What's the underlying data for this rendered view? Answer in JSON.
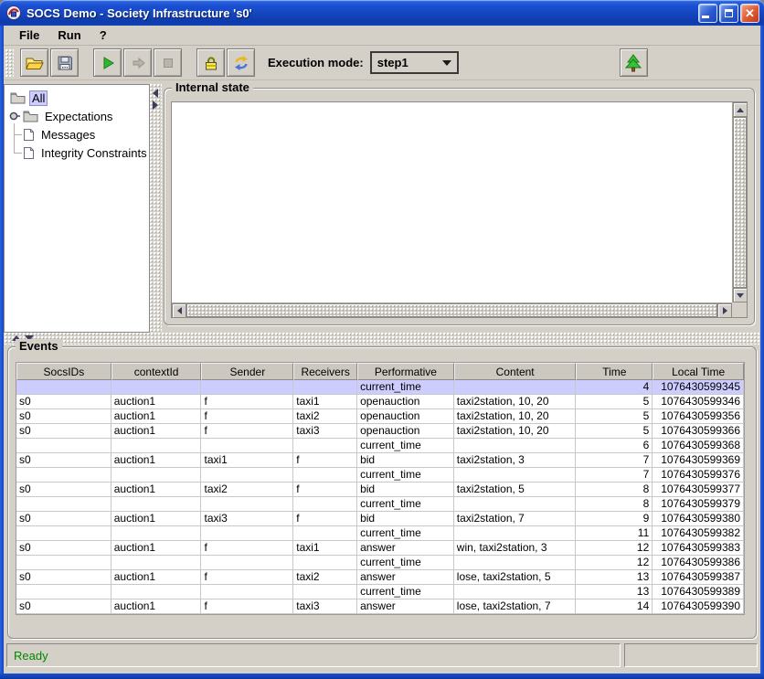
{
  "window": {
    "title": "SOCS Demo - Society Infrastructure 's0'"
  },
  "menu_bar": {
    "items": [
      "File",
      "Run",
      "?"
    ]
  },
  "toolbar": {
    "execution_mode_label": "Execution mode:",
    "execution_mode_value": "step1",
    "buttons": [
      "open",
      "save",
      "run",
      "step-forward",
      "stop",
      "lock",
      "refresh",
      "show-tree"
    ]
  },
  "tree": {
    "items": [
      {
        "label": "All",
        "icon": "folder",
        "selected": true,
        "level": 0,
        "handle": false,
        "last": false
      },
      {
        "label": "Expectations",
        "icon": "folder",
        "selected": false,
        "level": 0,
        "handle": true,
        "last": false
      },
      {
        "label": "Messages",
        "icon": "document",
        "selected": false,
        "level": 1,
        "handle": false,
        "last": false
      },
      {
        "label": "Integrity Constraints",
        "icon": "document",
        "selected": false,
        "level": 1,
        "handle": false,
        "last": true
      }
    ]
  },
  "internal_state": {
    "title": "Internal state",
    "content": ""
  },
  "events": {
    "title": "Events",
    "columns": [
      "SocsIDs",
      "contextId",
      "Sender",
      "Receivers",
      "Performative",
      "Content",
      "Time",
      "Local Time"
    ],
    "selected_row": 0,
    "rows": [
      [
        "",
        "",
        "",
        "",
        "current_time",
        "",
        "4",
        "1076430599345"
      ],
      [
        "s0",
        "auction1",
        "f",
        "taxi1",
        "openauction",
        "taxi2station, 10, 20",
        "5",
        "1076430599346"
      ],
      [
        "s0",
        "auction1",
        "f",
        "taxi2",
        "openauction",
        "taxi2station, 10, 20",
        "5",
        "1076430599356"
      ],
      [
        "s0",
        "auction1",
        "f",
        "taxi3",
        "openauction",
        "taxi2station, 10, 20",
        "5",
        "1076430599366"
      ],
      [
        "",
        "",
        "",
        "",
        "current_time",
        "",
        "6",
        "1076430599368"
      ],
      [
        "s0",
        "auction1",
        "taxi1",
        "f",
        "bid",
        "taxi2station, 3",
        "7",
        "1076430599369"
      ],
      [
        "",
        "",
        "",
        "",
        "current_time",
        "",
        "7",
        "1076430599376"
      ],
      [
        "s0",
        "auction1",
        "taxi2",
        "f",
        "bid",
        "taxi2station, 5",
        "8",
        "1076430599377"
      ],
      [
        "",
        "",
        "",
        "",
        "current_time",
        "",
        "8",
        "1076430599379"
      ],
      [
        "s0",
        "auction1",
        "taxi3",
        "f",
        "bid",
        "taxi2station, 7",
        "9",
        "1076430599380"
      ],
      [
        "",
        "",
        "",
        "",
        "current_time",
        "",
        "11",
        "1076430599382"
      ],
      [
        "s0",
        "auction1",
        "f",
        "taxi1",
        "answer",
        "win, taxi2station, 3",
        "12",
        "1076430599383"
      ],
      [
        "",
        "",
        "",
        "",
        "current_time",
        "",
        "12",
        "1076430599386"
      ],
      [
        "s0",
        "auction1",
        "f",
        "taxi2",
        "answer",
        "lose, taxi2station, 5",
        "13",
        "1076430599387"
      ],
      [
        "",
        "",
        "",
        "",
        "current_time",
        "",
        "13",
        "1076430599389"
      ],
      [
        "s0",
        "auction1",
        "f",
        "taxi3",
        "answer",
        "lose, taxi2station, 7",
        "14",
        "1076430599390"
      ]
    ]
  },
  "status_bar": {
    "message": "Ready"
  },
  "colors": {
    "titlebar_blue": "#1445be",
    "selection": "#ccccff",
    "client_bg": "#d4d0c8",
    "status_green": "#008800"
  }
}
